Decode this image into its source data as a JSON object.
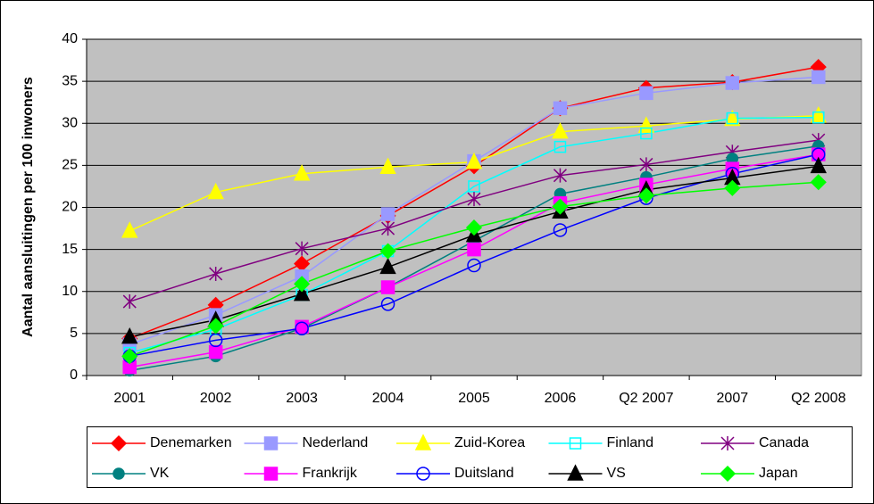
{
  "chart_data": {
    "type": "line",
    "y_label": "Aantal aansluitingen per 100 inwoners",
    "categories": [
      "2001",
      "2002",
      "2003",
      "2004",
      "2005",
      "2006",
      "Q2 2007",
      "2007",
      "Q2 2008"
    ],
    "ylim": [
      0,
      40
    ],
    "yticks": [
      0,
      5,
      10,
      15,
      20,
      25,
      30,
      35,
      40
    ],
    "grid": true,
    "series": [
      {
        "name": "Denemarken",
        "color": "#ff0000",
        "marker": "diamond",
        "values": [
          4.4,
          8.4,
          13.3,
          19.0,
          24.9,
          31.8,
          34.2,
          34.9,
          36.7
        ]
      },
      {
        "name": "Nederland",
        "color": "#9999ff",
        "marker": "square",
        "values": [
          3.7,
          7.2,
          11.8,
          19.2,
          25.5,
          31.8,
          33.6,
          34.8,
          35.5
        ]
      },
      {
        "name": "Zuid-Korea",
        "color": "#ffff00",
        "marker": "triangle",
        "values": [
          17.2,
          21.8,
          24.0,
          24.8,
          25.4,
          29.0,
          29.7,
          30.5,
          30.9
        ]
      },
      {
        "name": "Finland",
        "color": "#00ffff",
        "marker": "hollow-square",
        "values": [
          2.7,
          5.5,
          9.6,
          14.8,
          22.5,
          27.2,
          28.8,
          30.6,
          30.7
        ]
      },
      {
        "name": "Canada",
        "color": "#800080",
        "marker": "asterisk",
        "values": [
          8.8,
          12.1,
          15.1,
          17.5,
          21.0,
          23.8,
          25.1,
          26.6,
          28.0
        ]
      },
      {
        "name": "VK",
        "color": "#008080",
        "marker": "circle",
        "values": [
          0.6,
          2.3,
          5.6,
          10.5,
          16.0,
          21.6,
          23.6,
          25.8,
          27.3
        ]
      },
      {
        "name": "Frankrijk",
        "color": "#ff00ff",
        "marker": "square",
        "values": [
          1.0,
          2.8,
          5.8,
          10.5,
          15.0,
          20.5,
          22.7,
          24.6,
          26.3
        ]
      },
      {
        "name": "Duitsland",
        "color": "#0000ff",
        "marker": "hollow-circle",
        "values": [
          2.3,
          4.2,
          5.6,
          8.5,
          13.1,
          17.3,
          21.1,
          24.0,
          26.3
        ]
      },
      {
        "name": "VS",
        "color": "#000000",
        "marker": "triangle",
        "values": [
          4.6,
          6.6,
          9.7,
          12.9,
          16.7,
          19.5,
          22.1,
          23.5,
          24.9
        ]
      },
      {
        "name": "Japan",
        "color": "#00ff00",
        "marker": "diamond",
        "values": [
          2.3,
          5.9,
          10.9,
          14.8,
          17.6,
          20.1,
          21.4,
          22.3,
          23.0
        ]
      }
    ]
  }
}
